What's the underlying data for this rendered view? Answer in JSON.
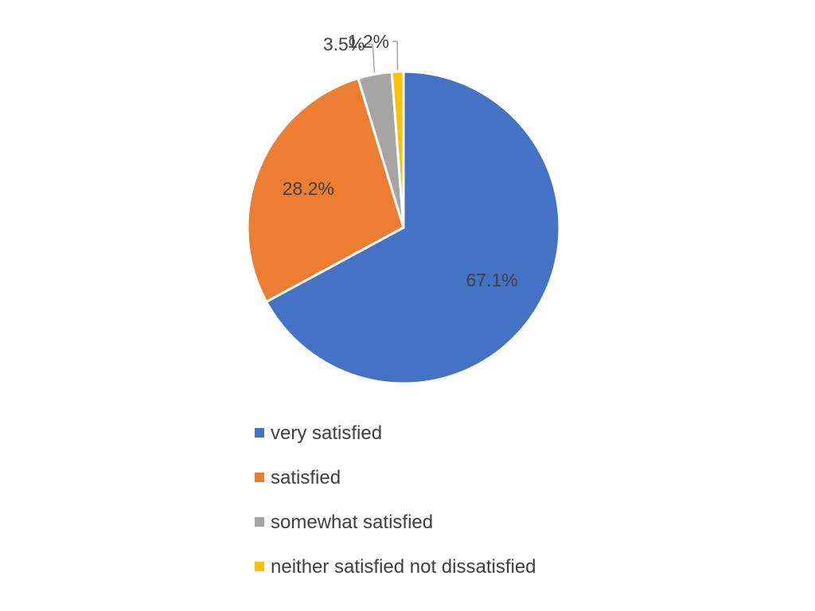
{
  "chart_data": {
    "type": "pie",
    "title": "",
    "categories": [
      "very satisfied",
      "satisfied",
      "somewhat satisfied",
      "neither satisfied not dissatisfied"
    ],
    "values": [
      67.1,
      28.2,
      3.5,
      1.2
    ],
    "value_labels": [
      "67.1%",
      "28.2%",
      "3.5%",
      "1.2%"
    ],
    "colors": [
      "#4472C4",
      "#ED7D31",
      "#A5A5A5",
      "#FFC000"
    ],
    "start_angle": "12 o'clock",
    "direction": "clockwise",
    "legend_placement": "bottom"
  }
}
